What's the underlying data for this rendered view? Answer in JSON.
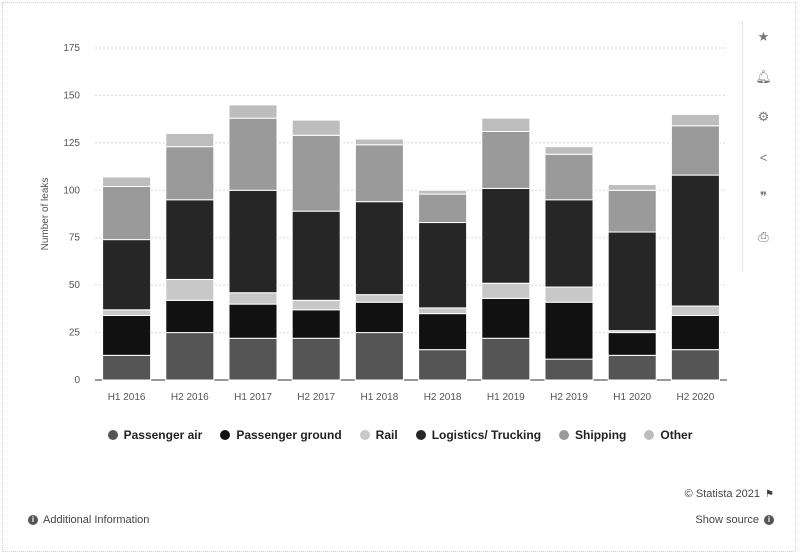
{
  "chart_data": {
    "type": "bar",
    "stacked": true,
    "categories": [
      "H1 2016",
      "H2 2016",
      "H1 2017",
      "H2 2017",
      "H1 2018",
      "H2 2018",
      "H1 2019",
      "H2 2019",
      "H1 2020",
      "H2 2020"
    ],
    "series": [
      {
        "name": "Passenger air",
        "color": "#555555",
        "values": [
          13,
          25,
          22,
          22,
          25,
          16,
          22,
          11,
          13,
          16
        ]
      },
      {
        "name": "Passenger ground",
        "color": "#111111",
        "values": [
          21,
          17,
          18,
          15,
          16,
          19,
          21,
          30,
          12,
          18
        ]
      },
      {
        "name": "Rail",
        "color": "#c8c8c8",
        "values": [
          3,
          11,
          6,
          5,
          4,
          3,
          8,
          8,
          1,
          5
        ]
      },
      {
        "name": "Logistics/ Trucking",
        "color": "#262626",
        "values": [
          37,
          42,
          54,
          47,
          49,
          45,
          50,
          46,
          52,
          69
        ]
      },
      {
        "name": "Shipping",
        "color": "#9a9a9a",
        "values": [
          28,
          28,
          38,
          40,
          30,
          15,
          30,
          24,
          22,
          26
        ]
      },
      {
        "name": "Other",
        "color": "#bdbdbd",
        "values": [
          5,
          7,
          7,
          8,
          3,
          2,
          7,
          4,
          3,
          6
        ]
      }
    ],
    "title": "",
    "xlabel": "",
    "ylabel": "Number of leaks",
    "ylim": [
      0,
      175
    ],
    "yticks": [
      0,
      25,
      50,
      75,
      100,
      125,
      150,
      175
    ],
    "legend_position": "bottom",
    "grid": true
  },
  "legend": {
    "items": [
      "Passenger air",
      "Passenger ground",
      "Rail",
      "Logistics/ Trucking",
      "Shipping",
      "Other"
    ]
  },
  "toolbar": {
    "icons": [
      "star-icon",
      "bell-icon",
      "gear-icon",
      "share-icon",
      "quote-icon",
      "print-icon"
    ]
  },
  "footer": {
    "credit": "© Statista 2021",
    "additional_info": "Additional Information",
    "show_source": "Show source"
  }
}
